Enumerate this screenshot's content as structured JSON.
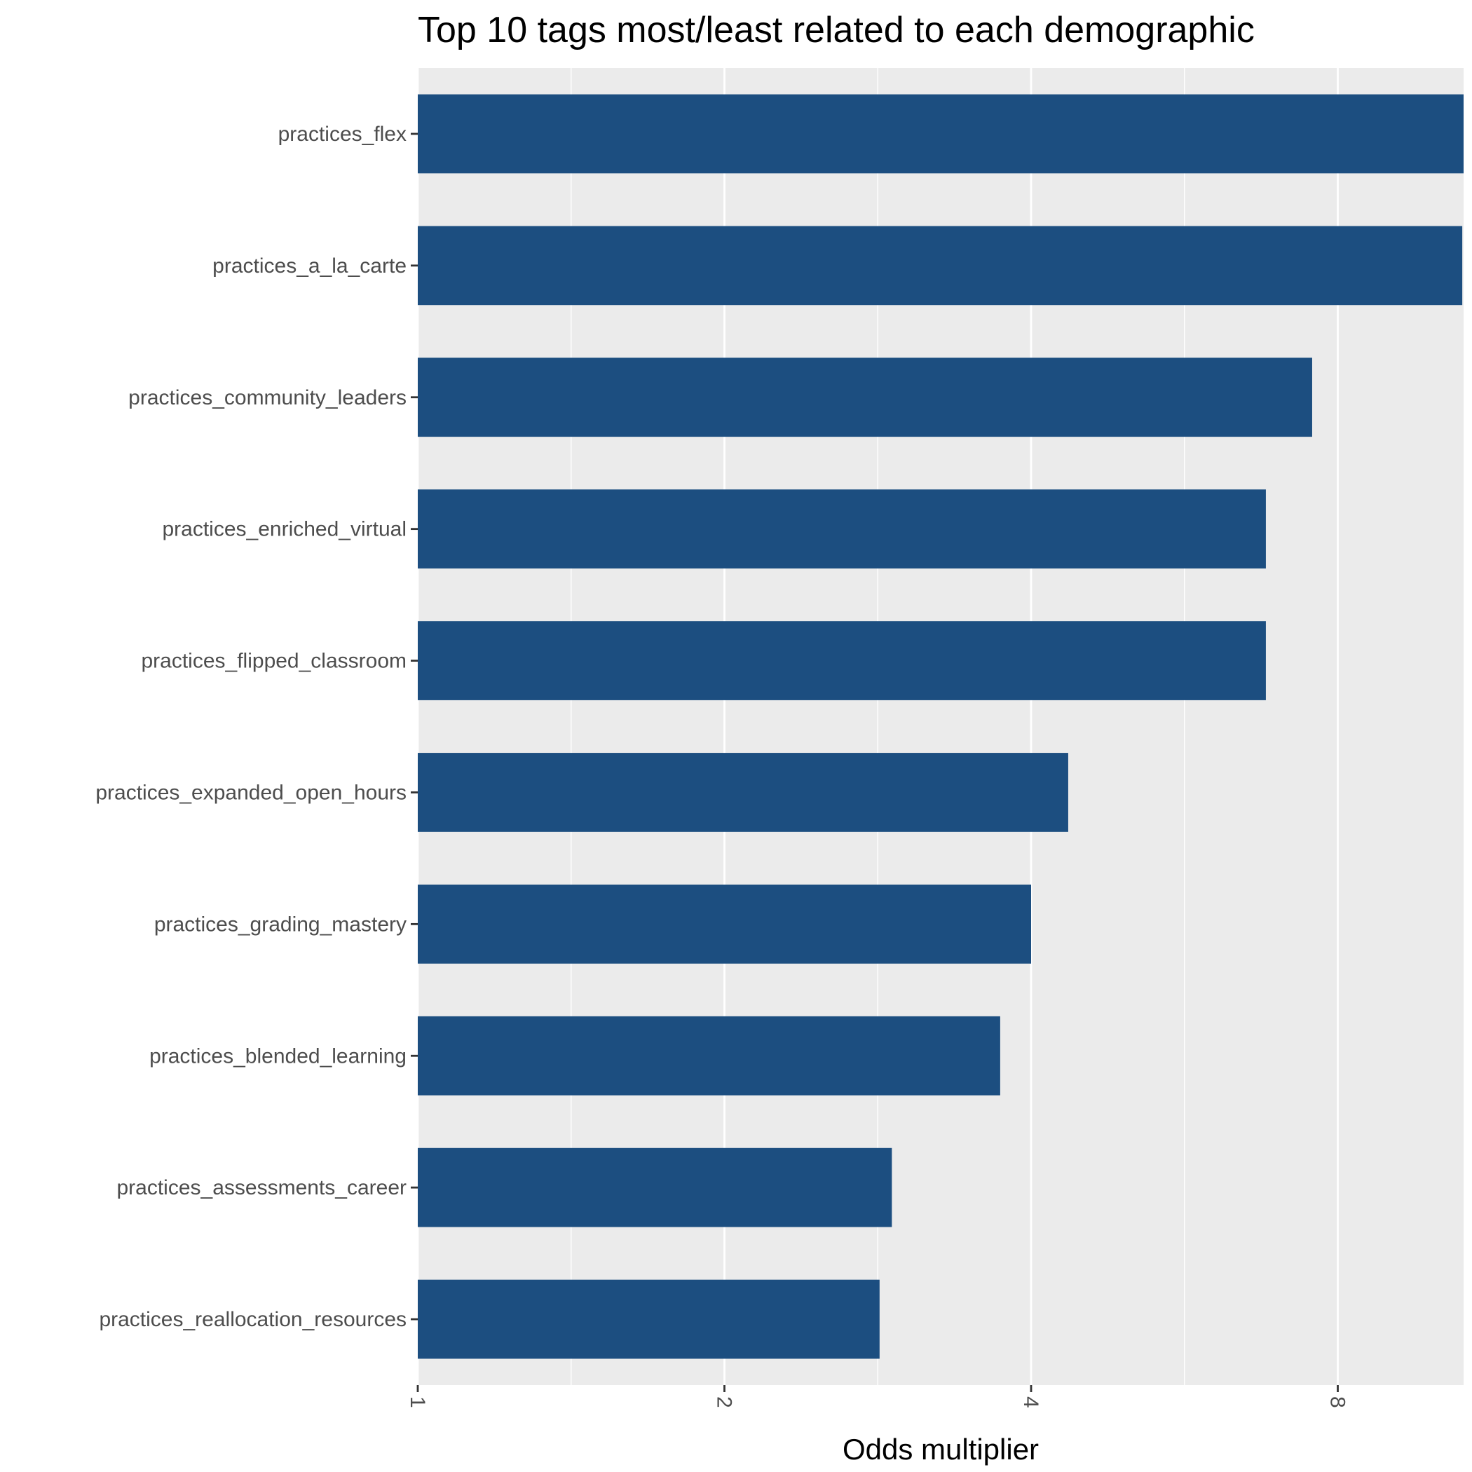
{
  "chart_data": {
    "type": "bar",
    "orientation": "horizontal",
    "title": "Top 10 tags most/least related to each demographic",
    "xlabel": "Odds multiplier",
    "ylabel": "",
    "x_scale": "log2",
    "xlim": [
      1,
      11
    ],
    "xticks": [
      1,
      2,
      4,
      8
    ],
    "xtick_labels": [
      "1",
      "2",
      "4",
      "8"
    ],
    "xtick_label_rotation": -90,
    "grid": true,
    "bar_color": "#1c4e80",
    "panel_background": "#ebebeb",
    "categories": [
      "practices_flex",
      "practices_a_la_carte",
      "practices_community_leaders",
      "practices_enriched_virtual",
      "practices_flipped_classroom",
      "practices_expanded_open_hours",
      "practices_grading_mastery",
      "practices_blended_learning",
      "practices_assessments_career",
      "practices_reallocation_resources"
    ],
    "values": [
      10.8,
      10.6,
      7.55,
      6.8,
      6.8,
      4.35,
      4.0,
      3.73,
      2.92,
      2.84
    ]
  }
}
